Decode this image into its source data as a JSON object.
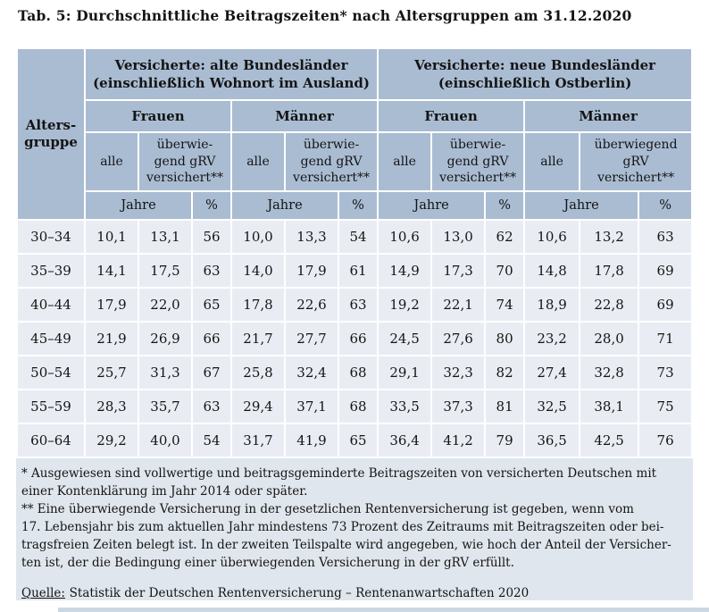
{
  "title": "Tab. 5: Durchschnittliche Beitragszeiten* nach Altersgruppen am 31.12.2020",
  "table": {
    "col_header": "Alters-\ngruppe",
    "region_groups": [
      {
        "label": "Versicherte: alte Bundesländer\n(einschließlich Wohnort im Ausland)"
      },
      {
        "label": "Versicherte: neue Bundesländer\n(einschließlich Ostberlin)"
      }
    ],
    "gender_labels": [
      "Frauen",
      "Männer",
      "Frauen",
      "Männer"
    ],
    "sub_headers": {
      "alle": "alle",
      "ueberwiegend": "überwie-\ngend gRV\nversichert**",
      "ueberwiegend_wide": "überwiegend\ngRV\nversichert**",
      "jahre": "Jahre",
      "percent": "%"
    },
    "rows": [
      {
        "age": "30–34",
        "values": [
          "10,1",
          "13,1",
          "56",
          "10,0",
          "13,3",
          "54",
          "10,6",
          "13,0",
          "62",
          "10,6",
          "13,2",
          "63"
        ]
      },
      {
        "age": "35–39",
        "values": [
          "14,1",
          "17,5",
          "63",
          "14,0",
          "17,9",
          "61",
          "14,9",
          "17,3",
          "70",
          "14,8",
          "17,8",
          "69"
        ]
      },
      {
        "age": "40–44",
        "values": [
          "17,9",
          "22,0",
          "65",
          "17,8",
          "22,6",
          "63",
          "19,2",
          "22,1",
          "74",
          "18,9",
          "22,8",
          "69"
        ]
      },
      {
        "age": "45–49",
        "values": [
          "21,9",
          "26,9",
          "66",
          "21,7",
          "27,7",
          "66",
          "24,5",
          "27,6",
          "80",
          "23,2",
          "28,0",
          "71"
        ]
      },
      {
        "age": "50–54",
        "values": [
          "25,7",
          "31,3",
          "67",
          "25,8",
          "32,4",
          "68",
          "29,1",
          "32,3",
          "82",
          "27,4",
          "32,8",
          "73"
        ]
      },
      {
        "age": "55–59",
        "values": [
          "28,3",
          "35,7",
          "63",
          "29,4",
          "37,1",
          "68",
          "33,5",
          "37,3",
          "81",
          "32,5",
          "38,1",
          "75"
        ]
      },
      {
        "age": "60–64",
        "values": [
          "29,2",
          "40,0",
          "54",
          "31,7",
          "41,9",
          "65",
          "36,4",
          "41,2",
          "79",
          "36,5",
          "42,5",
          "76"
        ]
      }
    ]
  },
  "footnotes": {
    "note1": "* Ausgewiesen sind vollwertige und beitragsgeminderte Beitragszeiten von versicherten Deutschen mit\neiner Kontenklärung im Jahr 2014 oder später.",
    "note2": "** Eine überwiegende Versicherung in der gesetzlichen Rentenversicherung ist gegeben, wenn vom\n17. Lebensjahr bis zum aktuellen Jahr mindestens 73 Prozent des Zeitraums mit Beitragszeiten oder bei-\ntragsfreien Zeiten belegt ist. In der zweiten Teilspalte wird angegeben, wie hoch der Anteil der Versicher-\nten ist, der die Bedingung einer überwiegenden Versicherung in der gRV erfüllt."
  },
  "source": {
    "label": "Quelle:",
    "text": "Statistik der Deutschen Rentenversicherung – Rentenanwartschaften 2020"
  },
  "colors": {
    "header_blue": "#a9bcd2",
    "row_bg": "#e9edf3",
    "panel_bg": "#e0e6ed",
    "gridline": "#ffffff",
    "text": "#141414"
  }
}
